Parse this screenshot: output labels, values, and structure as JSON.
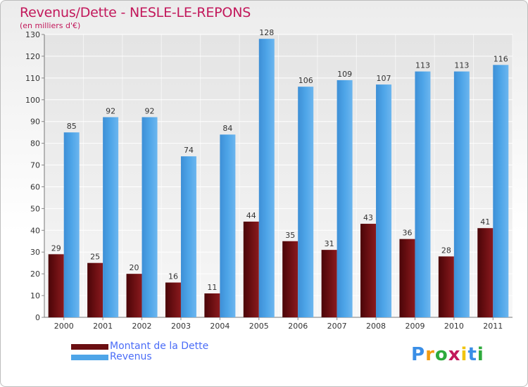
{
  "header": {
    "title": "Revenus/Dette - NESLE-LE-REPONS",
    "subtitle": "(en milliers d'€)"
  },
  "legend": {
    "items": [
      {
        "label": "Montant de la Dette",
        "color": "#6b0f12"
      },
      {
        "label": "Revenus",
        "color": "#4ea5e8"
      }
    ]
  },
  "logo": {
    "letters": [
      "P",
      "r",
      "o",
      "x",
      "i",
      "t",
      "i"
    ],
    "colors": [
      "#3a8ee6",
      "#f39c12",
      "#2eaa3c",
      "#c2185b",
      "#f1c40f",
      "#3a8ee6",
      "#2eaa3c"
    ]
  },
  "chart_data": {
    "type": "bar",
    "title": "Revenus/Dette - NESLE-LE-REPONS",
    "subtitle": "(en milliers d'€)",
    "categories": [
      "2000",
      "2001",
      "2002",
      "2003",
      "2004",
      "2005",
      "2006",
      "2007",
      "2008",
      "2009",
      "2010",
      "2011"
    ],
    "series": [
      {
        "name": "Montant de la Dette",
        "color": "#6b0f12",
        "values": [
          29,
          25,
          20,
          16,
          11,
          44,
          35,
          31,
          43,
          36,
          28,
          41
        ]
      },
      {
        "name": "Revenus",
        "color": "#4ea5e8",
        "values": [
          85,
          92,
          92,
          74,
          84,
          128,
          106,
          109,
          107,
          113,
          113,
          116
        ]
      }
    ],
    "ylim": [
      0,
      130
    ],
    "yticks": [
      0,
      10,
      20,
      30,
      40,
      50,
      60,
      70,
      80,
      90,
      100,
      110,
      120,
      130
    ],
    "grid": true,
    "legend_position": "bottom-left"
  }
}
